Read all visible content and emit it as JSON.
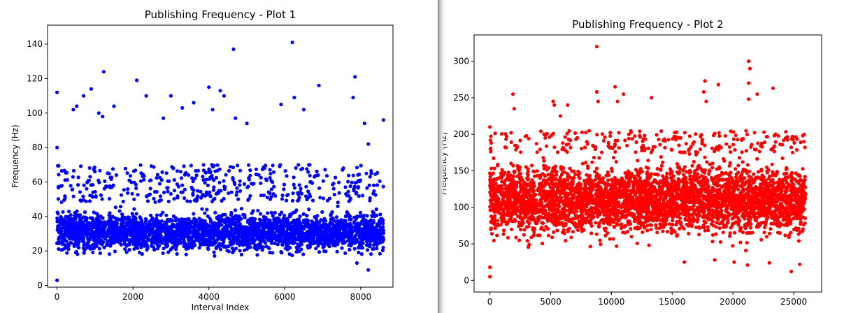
{
  "chart_data": [
    {
      "type": "scatter",
      "title": "Publishing Frequency - Plot 1",
      "xlabel": "Interval Index",
      "ylabel": "Frequency (Hz)",
      "color": "#0000ff",
      "xlim": [
        -250,
        8850
      ],
      "ylim": [
        -1,
        151
      ],
      "xticks": [
        0,
        2000,
        4000,
        6000,
        8000
      ],
      "yticks": [
        0,
        20,
        40,
        60,
        80,
        100,
        120,
        140
      ],
      "grid": false,
      "legend": "none",
      "n_points": 8600,
      "typical_range": [
        18,
        48
      ],
      "median": 30,
      "outliers": [
        {
          "x": 0,
          "y": 112
        },
        {
          "x": 0,
          "y": 80
        },
        {
          "x": 0,
          "y": 3
        },
        {
          "x": 430,
          "y": 102
        },
        {
          "x": 520,
          "y": 104
        },
        {
          "x": 700,
          "y": 110
        },
        {
          "x": 900,
          "y": 114
        },
        {
          "x": 1100,
          "y": 100
        },
        {
          "x": 1230,
          "y": 124
        },
        {
          "x": 1200,
          "y": 98
        },
        {
          "x": 1500,
          "y": 104
        },
        {
          "x": 2100,
          "y": 119
        },
        {
          "x": 2350,
          "y": 110
        },
        {
          "x": 2800,
          "y": 97
        },
        {
          "x": 3000,
          "y": 110
        },
        {
          "x": 3300,
          "y": 103
        },
        {
          "x": 3600,
          "y": 106
        },
        {
          "x": 4000,
          "y": 115
        },
        {
          "x": 4100,
          "y": 102
        },
        {
          "x": 4300,
          "y": 113
        },
        {
          "x": 4400,
          "y": 110
        },
        {
          "x": 4650,
          "y": 137
        },
        {
          "x": 4700,
          "y": 97
        },
        {
          "x": 5000,
          "y": 94
        },
        {
          "x": 5900,
          "y": 105
        },
        {
          "x": 6200,
          "y": 141
        },
        {
          "x": 6250,
          "y": 109
        },
        {
          "x": 6500,
          "y": 102
        },
        {
          "x": 6900,
          "y": 116
        },
        {
          "x": 7800,
          "y": 109
        },
        {
          "x": 7850,
          "y": 121
        },
        {
          "x": 8100,
          "y": 94
        },
        {
          "x": 8200,
          "y": 82
        },
        {
          "x": 8600,
          "y": 96
        },
        {
          "x": 8200,
          "y": 9
        },
        {
          "x": 7900,
          "y": 13
        }
      ]
    },
    {
      "type": "scatter",
      "title": "Publishing Frequency - Plot 2",
      "xlabel": "",
      "ylabel": "Frequency (Hz)",
      "color": "#ff0000",
      "xlim": [
        -1300,
        27300
      ],
      "ylim": [
        -16,
        336
      ],
      "xticks": [
        0,
        5000,
        10000,
        15000,
        20000,
        25000
      ],
      "yticks": [
        0,
        50,
        100,
        150,
        200,
        250,
        300
      ],
      "grid": false,
      "legend": "none",
      "n_points": 26000,
      "typical_range": [
        50,
        180
      ],
      "median": 100,
      "outliers": [
        {
          "x": 0,
          "y": 5
        },
        {
          "x": 0,
          "y": 18
        },
        {
          "x": 0,
          "y": 210
        },
        {
          "x": 1900,
          "y": 255
        },
        {
          "x": 2000,
          "y": 235
        },
        {
          "x": 5200,
          "y": 245
        },
        {
          "x": 5300,
          "y": 240
        },
        {
          "x": 5800,
          "y": 225
        },
        {
          "x": 6400,
          "y": 240
        },
        {
          "x": 8800,
          "y": 320
        },
        {
          "x": 8800,
          "y": 258
        },
        {
          "x": 8900,
          "y": 245
        },
        {
          "x": 10300,
          "y": 265
        },
        {
          "x": 10500,
          "y": 245
        },
        {
          "x": 11000,
          "y": 255
        },
        {
          "x": 13300,
          "y": 250
        },
        {
          "x": 17700,
          "y": 273
        },
        {
          "x": 17600,
          "y": 258
        },
        {
          "x": 17800,
          "y": 245
        },
        {
          "x": 18800,
          "y": 268
        },
        {
          "x": 21300,
          "y": 300
        },
        {
          "x": 21400,
          "y": 290
        },
        {
          "x": 21300,
          "y": 270
        },
        {
          "x": 21300,
          "y": 248
        },
        {
          "x": 22000,
          "y": 255
        },
        {
          "x": 23300,
          "y": 263
        },
        {
          "x": 24800,
          "y": 12
        },
        {
          "x": 21200,
          "y": 21
        },
        {
          "x": 20100,
          "y": 25
        },
        {
          "x": 18500,
          "y": 28
        },
        {
          "x": 16000,
          "y": 25
        },
        {
          "x": 23000,
          "y": 24
        },
        {
          "x": 25500,
          "y": 22
        }
      ]
    }
  ]
}
